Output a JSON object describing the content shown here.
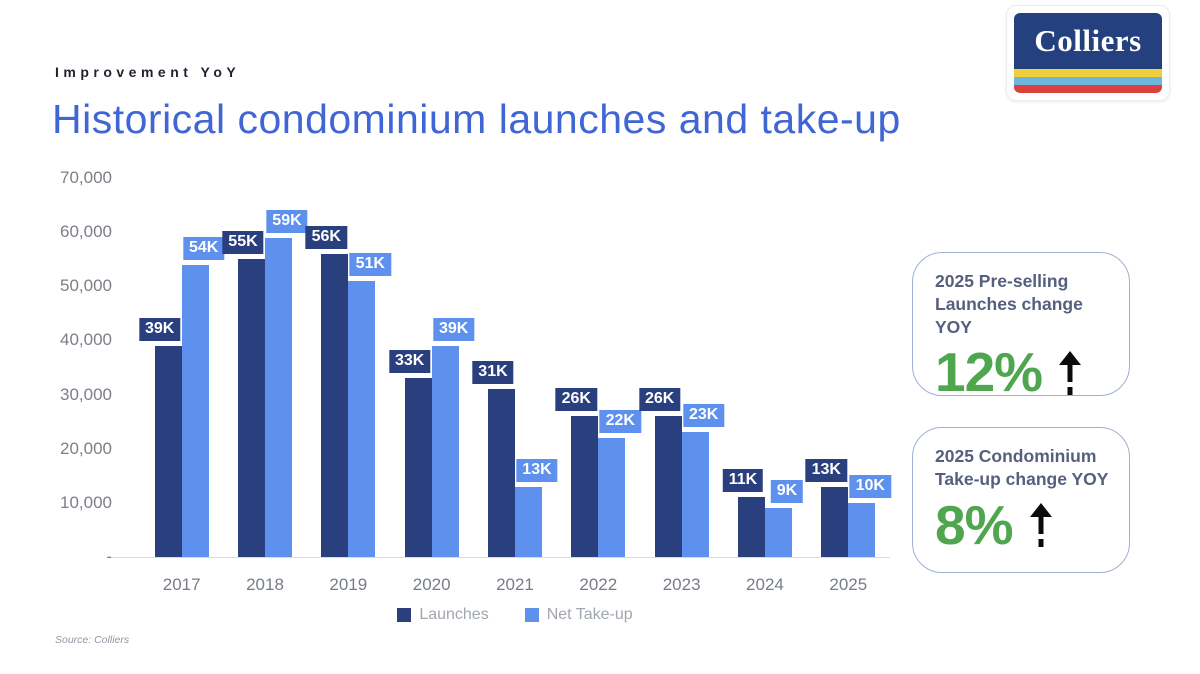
{
  "header": {
    "kicker": "Improvement YoY",
    "title": "Historical condominium launches and take-up"
  },
  "logo": {
    "text": "Colliers",
    "navy": "#24407f",
    "stripes": [
      "#f0cf3c",
      "#6fb6dd",
      "#dd3f3f"
    ]
  },
  "chart_data": {
    "type": "bar",
    "categories": [
      "2017",
      "2018",
      "2019",
      "2020",
      "2021",
      "2022",
      "2023",
      "2024",
      "2025"
    ],
    "series": [
      {
        "name": "Launches",
        "color": "#2a3f7e",
        "values": [
          39000,
          55000,
          56000,
          33000,
          31000,
          26000,
          26000,
          11000,
          13000
        ],
        "labels": [
          "39K",
          "55K",
          "56K",
          "33K",
          "31K",
          "26K",
          "26K",
          "11K",
          "13K"
        ]
      },
      {
        "name": "Net Take-up",
        "color": "#5e90ee",
        "values": [
          54000,
          59000,
          51000,
          39000,
          13000,
          22000,
          23000,
          9000,
          10000
        ],
        "labels": [
          "54K",
          "59K",
          "51K",
          "39K",
          "13K",
          "22K",
          "23K",
          "9K",
          "10K"
        ]
      }
    ],
    "title": "Historical condominium launches and take-up",
    "xlabel": "",
    "ylabel": "",
    "ylim": [
      0,
      70000
    ],
    "yticks": [
      "70,000",
      "60,000",
      "50,000",
      "40,000",
      "30,000",
      "20,000",
      "10,000",
      "-"
    ],
    "grid": false,
    "legend_position": "bottom"
  },
  "cards": [
    {
      "line1": "2025 Pre-selling",
      "line2": "Launches change YOY",
      "value": "12%",
      "direction": "up"
    },
    {
      "line1": "2025 Condominium",
      "line2": "Take-up change YOY",
      "value": "8%",
      "direction": "up"
    }
  ],
  "footer": {
    "source": "Source: Colliers"
  }
}
